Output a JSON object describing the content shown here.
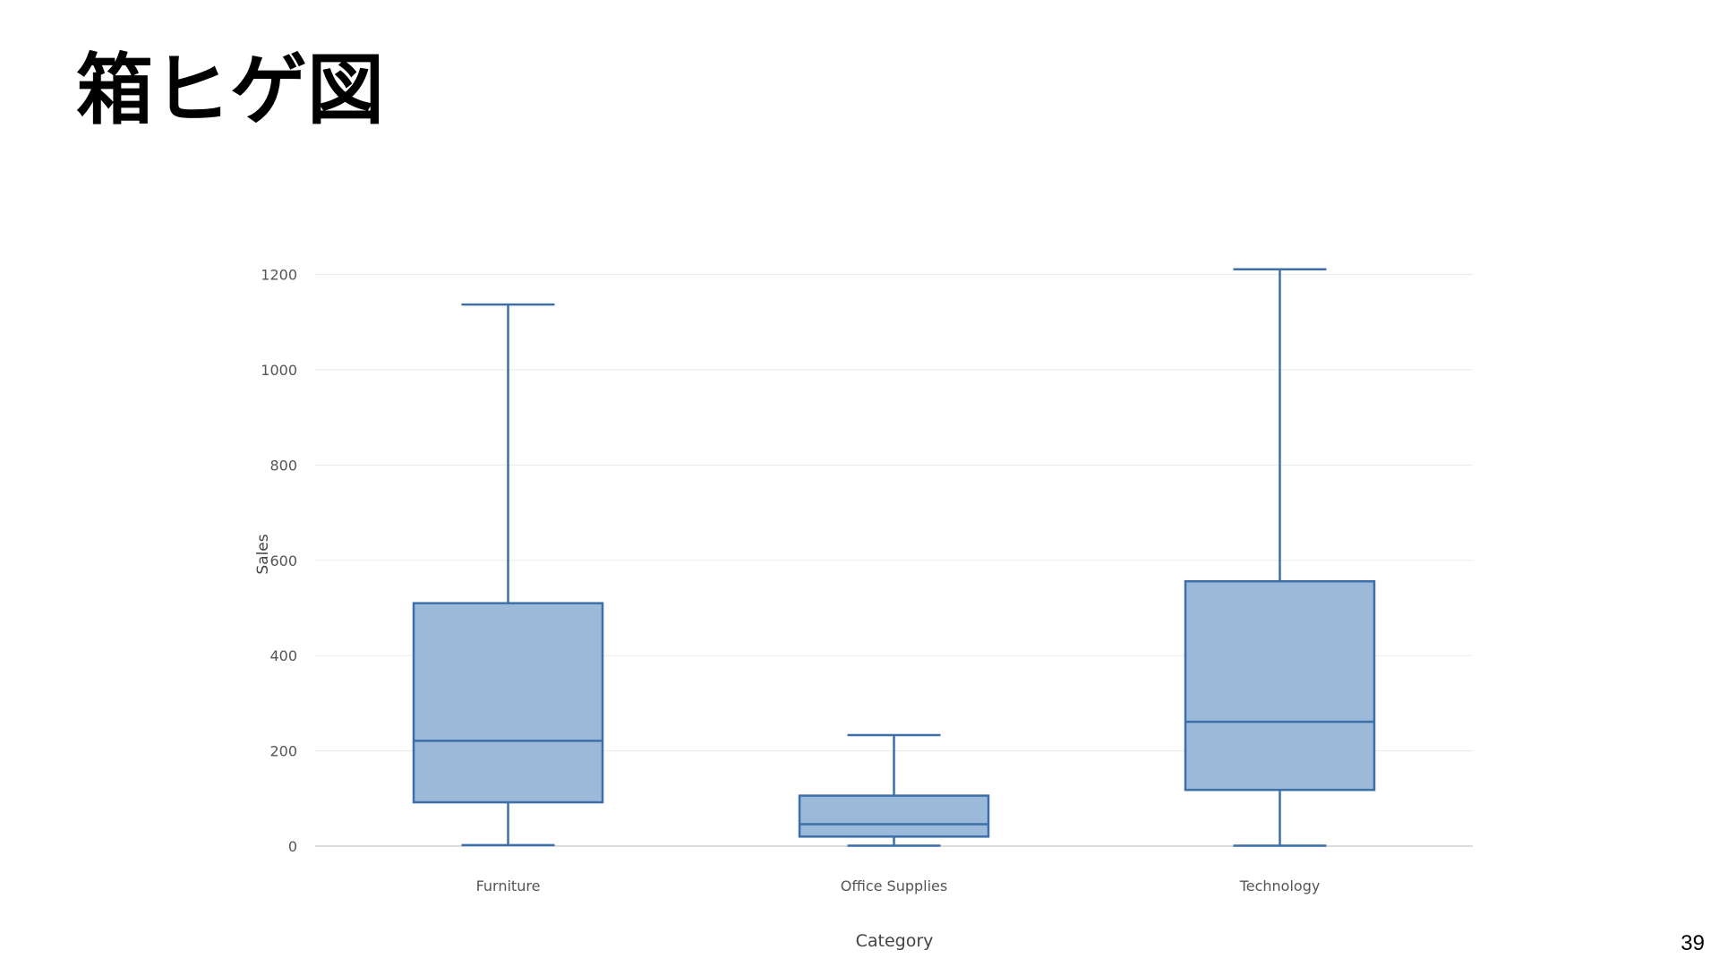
{
  "slide": {
    "title": "箱ヒゲ図",
    "page_number": "39"
  },
  "chart_data": {
    "type": "box",
    "title": "",
    "xlabel": "Category",
    "ylabel": "Sales",
    "ylim": [
      0,
      1250
    ],
    "yticks": [
      0,
      200,
      400,
      600,
      800,
      1000,
      1200
    ],
    "grid": true,
    "categories": [
      "Furniture",
      "Office Supplies",
      "Technology"
    ],
    "boxes": [
      {
        "category": "Furniture",
        "min": 2,
        "q1": 92,
        "median": 221,
        "q3": 510,
        "max": 1137
      },
      {
        "category": "Office Supplies",
        "min": 1,
        "q1": 20,
        "median": 46,
        "q3": 106,
        "max": 233
      },
      {
        "category": "Technology",
        "min": 1,
        "q1": 118,
        "median": 261,
        "q3": 556,
        "max": 1211
      }
    ],
    "colors": {
      "box_fill": "#9bb9d8",
      "box_line": "#3d6fa8",
      "grid": "#eaeaea",
      "axis_line": "#cfcfcf",
      "tick_text": "#555555",
      "label_text": "#444444"
    }
  }
}
